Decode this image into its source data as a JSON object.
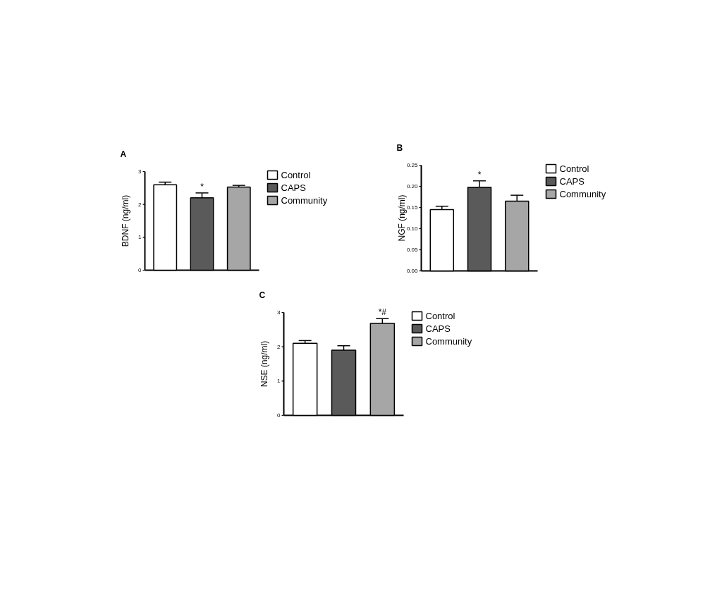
{
  "chart_data": [
    {
      "type": "bar",
      "title": "A",
      "ylabel": "BDNF (ng/ml)",
      "categories": [
        null,
        null,
        null
      ],
      "ylim": [
        0,
        3
      ],
      "yticks": [
        0,
        1,
        2,
        3
      ],
      "legend": "right",
      "series": [
        {
          "name": "Control",
          "color": "#ffffff",
          "values": [
            2.6,
            null,
            null
          ],
          "errors": [
            0.08,
            null,
            null
          ]
        },
        {
          "name": "CAPS",
          "color": "#5a5a5a",
          "values": [
            null,
            2.2,
            null
          ],
          "errors": [
            null,
            0.15,
            null
          ],
          "value_labels": [
            null,
            "*",
            null
          ]
        },
        {
          "name": "Community",
          "color": "#a6a6a6",
          "values": [
            null,
            null,
            2.53
          ],
          "errors": [
            null,
            null,
            0.05
          ]
        }
      ]
    },
    {
      "type": "bar",
      "title": "B",
      "ylabel": "NGF (ng/ml)",
      "categories": [
        null,
        null,
        null
      ],
      "ylim": [
        0,
        0.25
      ],
      "yticks": [
        {
          "value": 0,
          "label": "0.00"
        },
        {
          "value": 0.05,
          "label": "0.05"
        },
        {
          "value": 0.1,
          "label": "0.10"
        },
        {
          "value": 0.15,
          "label": "0.15"
        },
        {
          "value": 0.2,
          "label": "0.20"
        },
        {
          "value": 0.25,
          "label": "0.25"
        }
      ],
      "legend": "right",
      "series": [
        {
          "name": "Control",
          "color": "#ffffff",
          "values": [
            0.145,
            null,
            null
          ],
          "errors": [
            0.008,
            null,
            null
          ]
        },
        {
          "name": "CAPS",
          "color": "#5a5a5a",
          "values": [
            null,
            0.198,
            null
          ],
          "errors": [
            null,
            0.015,
            null
          ],
          "value_labels": [
            null,
            "*",
            null
          ]
        },
        {
          "name": "Community",
          "color": "#a6a6a6",
          "values": [
            null,
            null,
            0.165
          ],
          "errors": [
            null,
            null,
            0.014
          ]
        }
      ]
    },
    {
      "type": "bar",
      "title": "C",
      "ylabel": "NSE (ng/ml)",
      "categories": [
        null,
        null,
        null
      ],
      "ylim": [
        0,
        3
      ],
      "yticks": [
        0,
        1,
        2,
        3
      ],
      "legend": "right",
      "series": [
        {
          "name": "Control",
          "color": "#ffffff",
          "values": [
            2.1,
            null,
            null
          ],
          "errors": [
            0.08,
            null,
            null
          ]
        },
        {
          "name": "CAPS",
          "color": "#5a5a5a",
          "values": [
            null,
            1.9,
            null
          ],
          "errors": [
            null,
            0.13,
            null
          ]
        },
        {
          "name": "Community",
          "color": "#a6a6a6",
          "values": [
            null,
            null,
            2.68
          ],
          "errors": [
            null,
            null,
            0.14
          ],
          "value_labels": [
            null,
            null,
            "*#"
          ]
        }
      ]
    }
  ]
}
